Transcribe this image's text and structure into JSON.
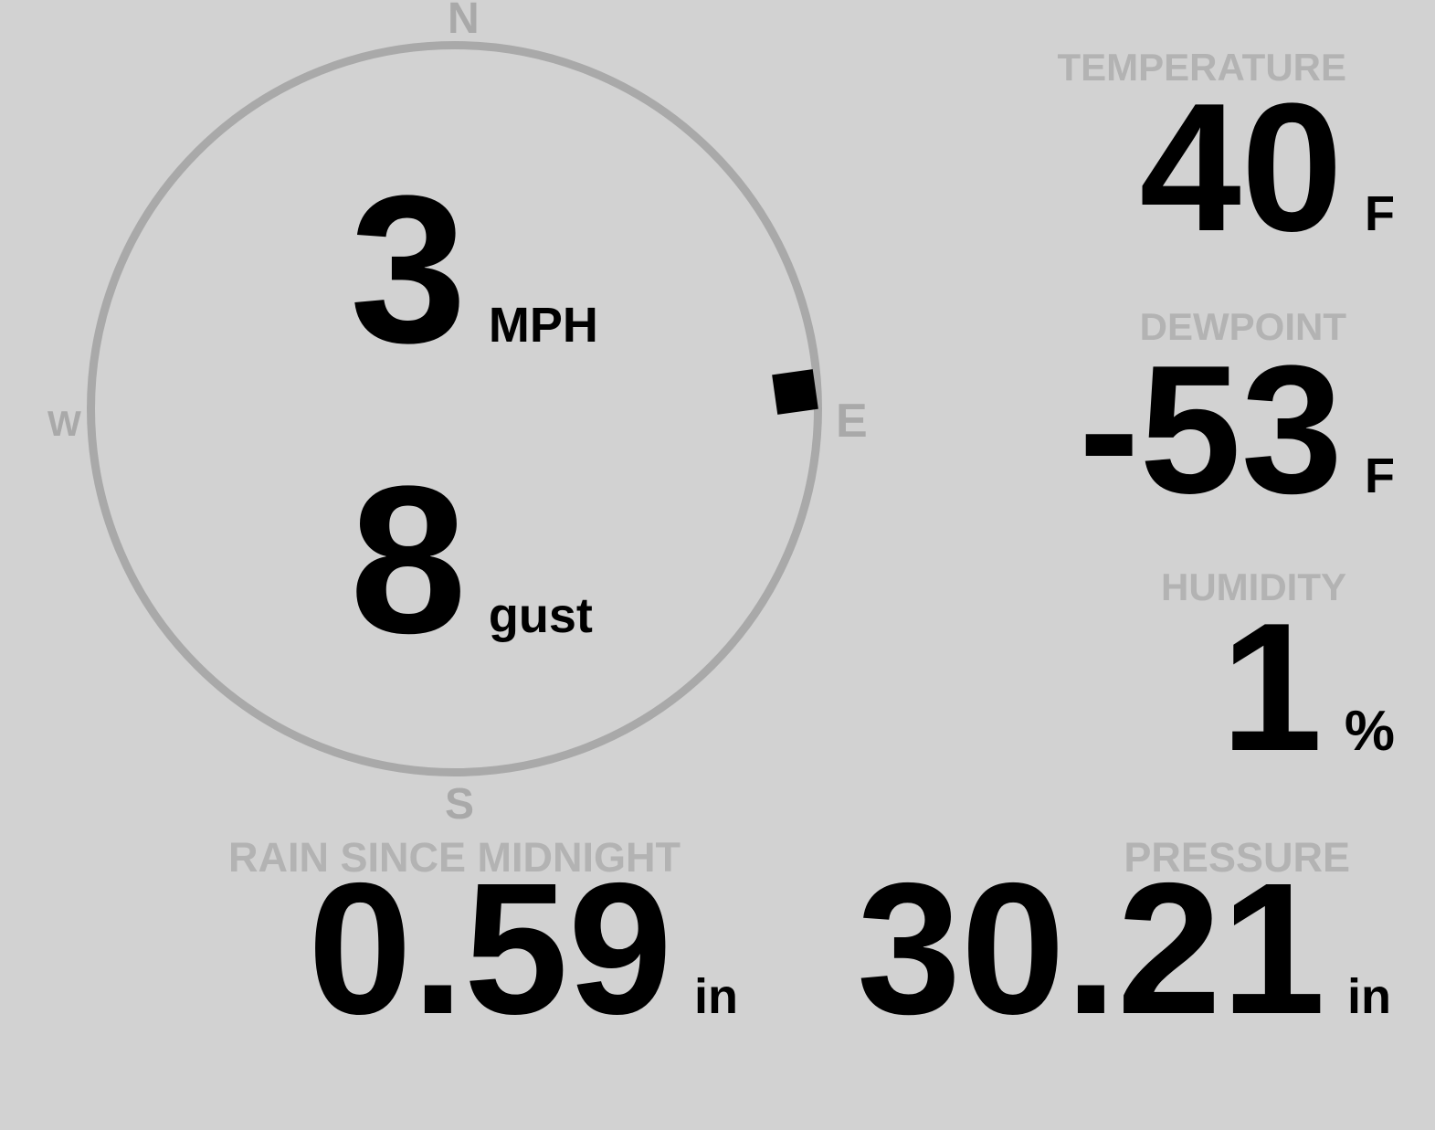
{
  "display": {
    "compass": {
      "cardinal": {
        "n": "N",
        "e": "E",
        "s": "S",
        "w": "W"
      },
      "wind": {
        "speed": "3",
        "speed_unit": "MPH",
        "gust": "8",
        "gust_unit": "gust",
        "direction": "E"
      }
    },
    "stats": {
      "temperature": {
        "label": "TEMPERATURE",
        "value": "40",
        "unit": "F"
      },
      "dewpoint": {
        "label": "DEWPOINT",
        "value": "-53",
        "unit": "F"
      },
      "humidity": {
        "label": "HUMIDITY",
        "value": "1",
        "unit": "%"
      },
      "rain": {
        "label": "RAIN SINCE MIDNIGHT",
        "value": "0.59",
        "unit": "in"
      },
      "pressure": {
        "label": "PRESSURE",
        "value": "30.21",
        "unit": "in"
      }
    },
    "colors": {
      "background": "#d2d2d2",
      "dial": "#a9a9a9",
      "section_label": "#b3b3b3",
      "value_text": "#000000",
      "wind_marker": "#000000"
    }
  }
}
